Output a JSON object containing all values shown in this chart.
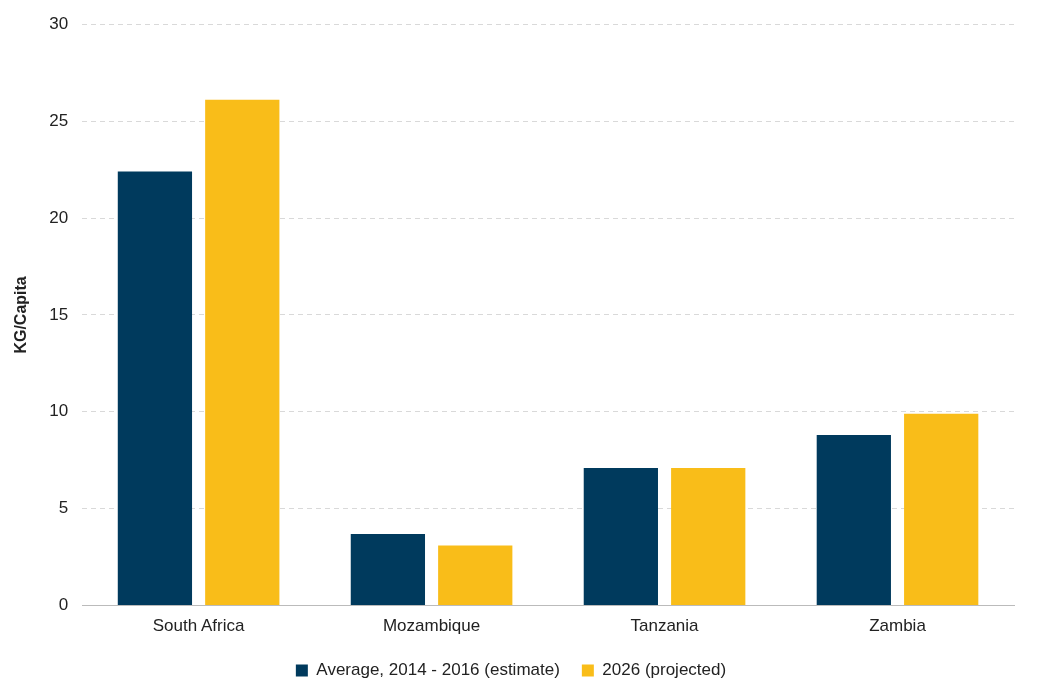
{
  "chart_data": {
    "type": "bar",
    "ylabel": "KG/Capita",
    "categories": [
      "South Africa",
      "Mozambique",
      "Tanzania",
      "Zambia"
    ],
    "series": [
      {
        "name": "Average, 2014 - 2016 (estimate)",
        "color": "#003a5d",
        "values": [
          22.4,
          3.7,
          7.1,
          8.8
        ]
      },
      {
        "name": "2026 (projected)",
        "color": "#f9bd19",
        "values": [
          26.1,
          3.1,
          7.1,
          9.9
        ]
      }
    ],
    "ylim": [
      0,
      30
    ],
    "yticks": [
      0,
      5,
      10,
      15,
      20,
      25,
      30
    ],
    "grid": "y",
    "legend": "bottom"
  }
}
